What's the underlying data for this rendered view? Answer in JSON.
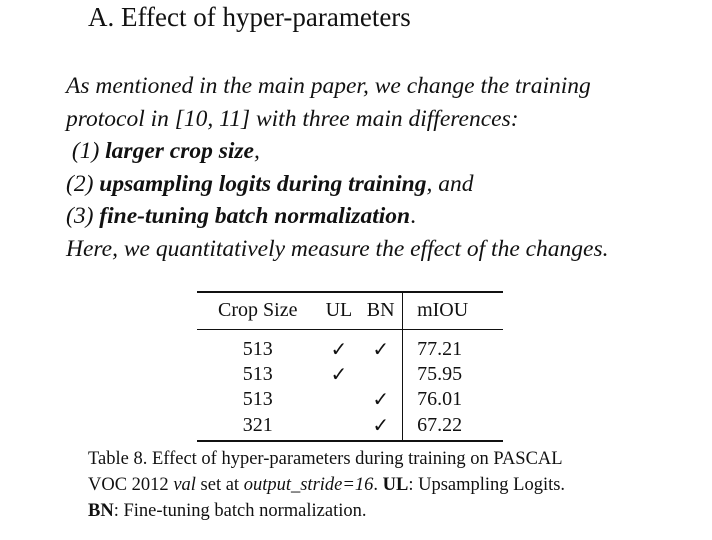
{
  "section": {
    "title": "A. Effect of hyper-parameters"
  },
  "intro": {
    "line1": "As mentioned in the main paper, we change the training",
    "line2": "protocol in [10, 11] with three main differences:",
    "item1_prefix": " (1) ",
    "item1_bold": "larger crop size",
    "item1_suffix": ",",
    "item2_prefix": "(2) ",
    "item2_bold": "upsampling logits during training",
    "item2_suffix": ", and",
    "item3_prefix": "(3) ",
    "item3_bold": "fine-tuning batch normalization",
    "item3_suffix": ".",
    "line6": "Here, we quantitatively measure the effect of the changes."
  },
  "table": {
    "headers": [
      "Crop Size",
      "UL",
      "BN",
      "mIOU"
    ],
    "rows": [
      {
        "crop": "513",
        "ul": "✓",
        "bn": "✓",
        "miou": "77.21"
      },
      {
        "crop": "513",
        "ul": "✓",
        "bn": "",
        "miou": "75.95"
      },
      {
        "crop": "513",
        "ul": "",
        "bn": "✓",
        "miou": "76.01"
      },
      {
        "crop": "321",
        "ul": "",
        "bn": "✓",
        "miou": "67.22"
      }
    ]
  },
  "caption": {
    "l1": "Table 8. Effect of hyper-parameters during training on PASCAL",
    "l2a": "VOC 2012 ",
    "l2_val": "val",
    "l2b": " set at ",
    "l2_os": "output_stride=16",
    "l2c": ". ",
    "l2_ul": "UL",
    "l2d": ": Upsampling Logits.",
    "l3_bn": "BN",
    "l3b": ": Fine-tuning batch normalization."
  }
}
